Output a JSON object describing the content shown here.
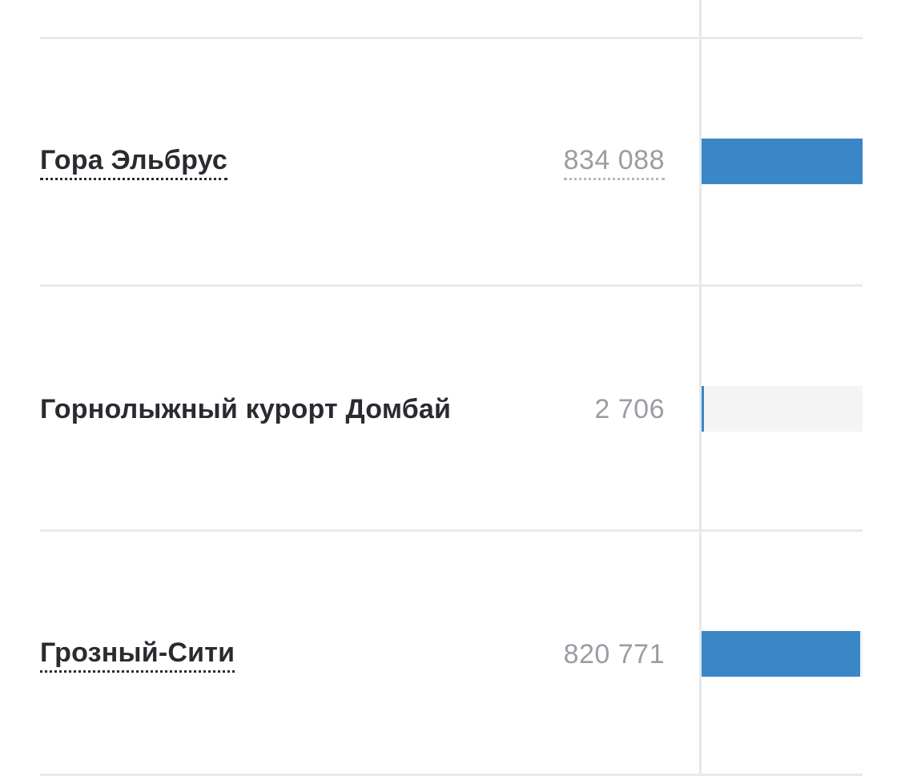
{
  "rows": [
    {
      "name": "Гора Эльбрус",
      "value": "834 088",
      "amount": 834088,
      "name_is_link": true,
      "value_is_link": true
    },
    {
      "name": "Горнолыжный курорт Домбай",
      "value": "2 706",
      "amount": 2706,
      "name_is_link": false,
      "value_is_link": false
    },
    {
      "name": "Грозный-Сити",
      "value": "820 771",
      "amount": 820771,
      "name_is_link": true,
      "value_is_link": false
    }
  ],
  "max_amount": 834088,
  "colors": {
    "bar_fill": "#3a87c8",
    "bar_track": "#f4f4f5",
    "label_text": "#2a2b30",
    "value_text": "#9a9da3",
    "divider": "#e8e9ec"
  }
}
